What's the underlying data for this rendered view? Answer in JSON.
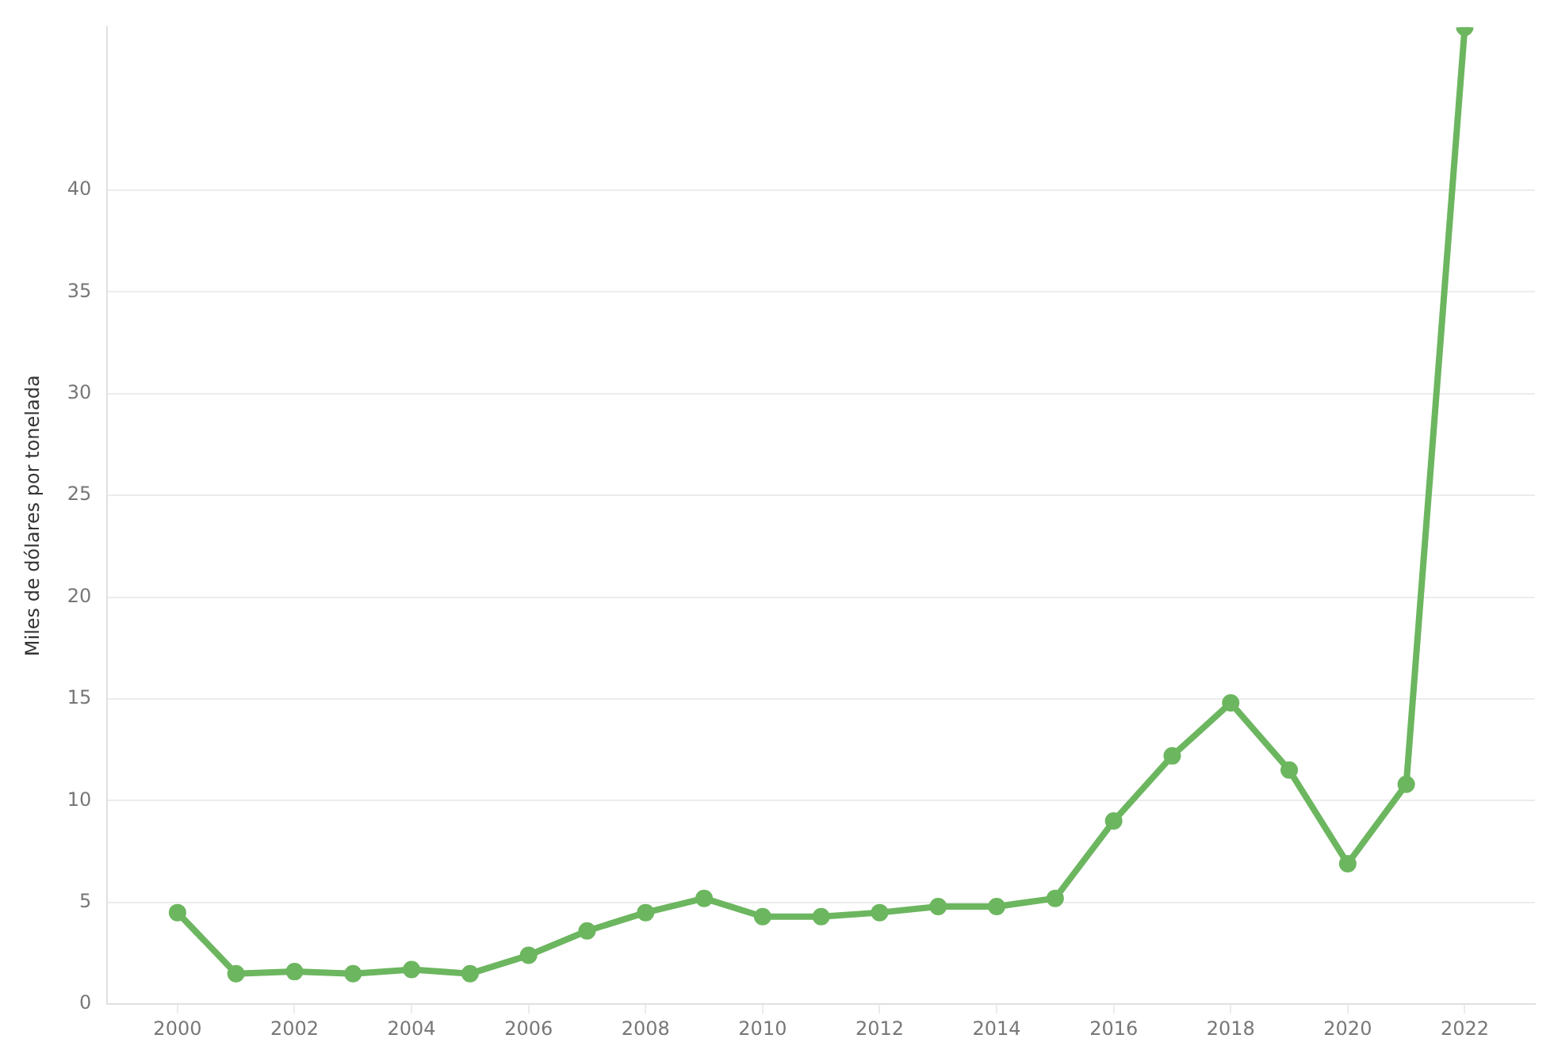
{
  "chart_data": {
    "type": "line",
    "ylabel": "Miles de dólares por tonelada",
    "x": [
      2000,
      2001,
      2002,
      2003,
      2004,
      2005,
      2006,
      2007,
      2008,
      2009,
      2010,
      2011,
      2012,
      2013,
      2014,
      2015,
      2016,
      2017,
      2018,
      2019,
      2020,
      2021,
      2022
    ],
    "series": [
      {
        "color": "#6cb65f",
        "values": [
          4.5,
          1.5,
          1.6,
          1.5,
          1.7,
          1.5,
          2.4,
          3.6,
          4.5,
          5.2,
          4.3,
          4.3,
          4.5,
          4.8,
          4.8,
          5.2,
          9.0,
          12.2,
          14.8,
          11.5,
          6.9,
          10.8,
          48
        ]
      }
    ],
    "xlim": [
      1998.8,
      2023.2
    ],
    "xticks": [
      2000,
      2002,
      2004,
      2006,
      2008,
      2010,
      2012,
      2014,
      2016,
      2018,
      2020,
      2022
    ],
    "ylim": [
      0,
      48
    ],
    "yticks": [
      0,
      5,
      10,
      15,
      20,
      25,
      30,
      35,
      40
    ],
    "grid": "y",
    "legend": false,
    "marker": "circle",
    "line_style": "solid"
  }
}
